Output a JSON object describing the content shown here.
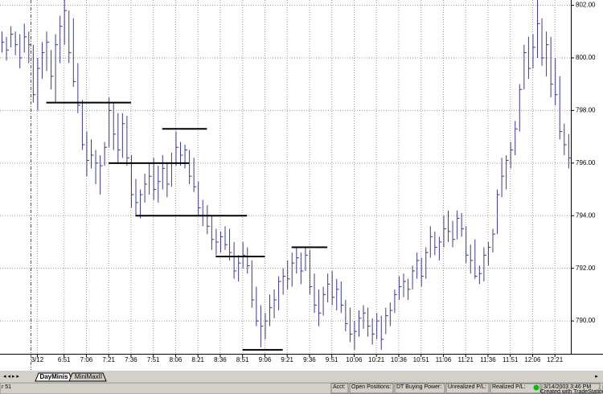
{
  "chart_data": {
    "type": "hlc",
    "color": "#3c3c8e",
    "level_color": "#000000",
    "grid": true,
    "ylim": [
      788.75,
      802.2
    ],
    "yticks": [
      {
        "value": 790,
        "label": "790.00"
      },
      {
        "value": 792,
        "label": "792.00"
      },
      {
        "value": 794,
        "label": "794.00"
      },
      {
        "value": 796,
        "label": "796.00"
      },
      {
        "value": 798,
        "label": "798.00"
      },
      {
        "value": 800,
        "label": "800.00"
      },
      {
        "value": 802,
        "label": "802.00"
      }
    ],
    "categories": [
      null,
      null,
      null,
      null,
      null,
      null,
      null,
      null,
      "3/12",
      null,
      null,
      null,
      null,
      null,
      "6:51",
      null,
      null,
      null,
      null,
      "7:06",
      null,
      null,
      null,
      null,
      "7:21",
      null,
      null,
      null,
      null,
      "7:36",
      null,
      null,
      null,
      null,
      "7:51",
      null,
      null,
      null,
      null,
      "8:06",
      null,
      null,
      null,
      null,
      "8:21",
      null,
      null,
      null,
      null,
      "8:36",
      null,
      null,
      null,
      null,
      "8:51",
      null,
      null,
      null,
      null,
      "9:06",
      null,
      null,
      null,
      null,
      "9:21",
      null,
      null,
      null,
      null,
      "9:36",
      null,
      null,
      null,
      null,
      "9:51",
      null,
      null,
      null,
      null,
      "10:06",
      null,
      null,
      null,
      null,
      "10:21",
      null,
      null,
      null,
      null,
      "10:36",
      null,
      null,
      null,
      null,
      "10:51",
      null,
      null,
      null,
      null,
      "11:06",
      null,
      null,
      null,
      null,
      "11:21",
      null,
      null,
      null,
      null,
      "11:36",
      null,
      null,
      null,
      null,
      "11:51",
      null,
      null,
      null,
      null,
      "12:06",
      null,
      null,
      null,
      null,
      "12:21",
      null,
      null,
      null
    ],
    "high": [
      801.0,
      800.8,
      801.2,
      801.0,
      800.9,
      801.3,
      801.0,
      800.5,
      800.0,
      800.6,
      801.0,
      800.3,
      800.9,
      801.6,
      802.2,
      801.8,
      801.5,
      799.8,
      798.4,
      797.2,
      796.9,
      796.5,
      796.3,
      796.8,
      798.5,
      798.3,
      797.9,
      797.9,
      797.8,
      796.3,
      795.4,
      795.0,
      795.6,
      796.0,
      796.2,
      795.9,
      796.3,
      796.0,
      796.4,
      797.2,
      796.8,
      796.7,
      796.5,
      796.2,
      795.3,
      794.6,
      794.4,
      794.0,
      793.5,
      793.4,
      793.6,
      793.5,
      793.0,
      792.5,
      793.0,
      792.8,
      792.3,
      791.3,
      790.6,
      790.3,
      791.0,
      791.2,
      791.7,
      792.0,
      792.3,
      792.6,
      792.8,
      792.6,
      792.8,
      792.7,
      791.8,
      791.2,
      791.3,
      791.8,
      791.9,
      791.6,
      791.5,
      790.8,
      790.5,
      790.0,
      790.4,
      790.6,
      790.5,
      790.1,
      790.3,
      790.2,
      790.5,
      790.7,
      791.2,
      791.7,
      791.8,
      791.6,
      792.1,
      792.6,
      792.4,
      792.8,
      793.6,
      793.4,
      793.2,
      794.0,
      794.2,
      793.8,
      794.2,
      794.1,
      793.6,
      792.9,
      793.1,
      792.1,
      792.8,
      793.0,
      793.5,
      795.0,
      796.2,
      796.3,
      796.8,
      797.6,
      799.0,
      800.5,
      800.8,
      800.9,
      802.2,
      801.5,
      801.0,
      800.8,
      800.0,
      799.3,
      797.5,
      797.1
    ],
    "low": [
      800.2,
      799.9,
      800.4,
      800.1,
      799.6,
      800.2,
      799.8,
      798.3,
      798.0,
      799.2,
      799.5,
      798.8,
      798.3,
      799.8,
      800.5,
      799.8,
      798.9,
      797.9,
      796.5,
      795.5,
      795.8,
      795.2,
      794.8,
      795.9,
      796.6,
      796.5,
      796.0,
      796.2,
      795.9,
      794.3,
      794.0,
      793.9,
      794.5,
      794.8,
      794.6,
      794.5,
      795.0,
      794.7,
      795.1,
      795.9,
      795.9,
      795.8,
      795.2,
      794.9,
      794.0,
      793.6,
      793.3,
      792.7,
      792.5,
      792.6,
      792.7,
      792.3,
      791.6,
      791.5,
      792.0,
      791.8,
      790.5,
      789.8,
      789.0,
      789.3,
      789.8,
      790.1,
      790.4,
      791.0,
      791.2,
      791.3,
      791.8,
      791.4,
      791.9,
      791.0,
      790.3,
      789.8,
      790.2,
      790.7,
      790.6,
      790.4,
      790.3,
      789.6,
      789.2,
      788.9,
      789.4,
      789.7,
      789.4,
      789.1,
      789.3,
      788.9,
      789.5,
      789.8,
      790.3,
      790.8,
      790.9,
      790.8,
      791.2,
      791.6,
      791.3,
      791.6,
      792.4,
      792.5,
      792.3,
      792.8,
      793.0,
      792.8,
      793.1,
      793.2,
      792.2,
      791.8,
      791.6,
      791.4,
      791.5,
      792.1,
      792.6,
      793.3,
      794.7,
      795.0,
      795.8,
      796.3,
      797.2,
      798.8,
      799.2,
      799.6,
      800.0,
      799.7,
      799.3,
      798.5,
      798.2,
      796.9,
      796.3,
      795.8
    ],
    "close": [
      800.6,
      800.3,
      800.9,
      800.5,
      800.0,
      800.8,
      800.5,
      798.6,
      799.6,
      800.2,
      800.6,
      799.3,
      800.5,
      801.2,
      801.8,
      800.2,
      799.1,
      798.2,
      796.7,
      796.1,
      796.3,
      796.0,
      795.9,
      796.6,
      798.0,
      797.1,
      796.5,
      797.5,
      796.2,
      794.8,
      794.5,
      794.8,
      795.2,
      795.5,
      795.0,
      795.3,
      795.8,
      795.2,
      796.0,
      796.6,
      796.3,
      796.5,
      795.5,
      795.1,
      794.3,
      794.0,
      793.6,
      793.1,
      793.0,
      793.2,
      792.9,
      792.6,
      791.9,
      792.2,
      792.5,
      792.1,
      790.8,
      790.0,
      789.8,
      790.0,
      790.5,
      790.8,
      791.5,
      791.7,
      791.6,
      792.2,
      792.4,
      791.9,
      792.5,
      791.3,
      790.6,
      790.3,
      791.0,
      791.4,
      790.9,
      791.2,
      790.6,
      789.9,
      789.5,
      789.6,
      790.1,
      790.3,
      789.8,
      789.5,
      790.0,
      789.3,
      790.2,
      790.4,
      791.0,
      791.3,
      791.5,
      791.2,
      791.9,
      792.3,
      791.7,
      792.6,
      793.2,
      792.8,
      793.0,
      793.5,
      793.4,
      793.1,
      793.9,
      793.5,
      792.5,
      792.3,
      791.7,
      791.8,
      792.5,
      792.8,
      793.3,
      794.8,
      795.5,
      796.1,
      796.5,
      797.3,
      798.8,
      800.2,
      799.6,
      800.4,
      801.3,
      800.0,
      800.5,
      799.0,
      798.6,
      797.2,
      796.7,
      796.2
    ],
    "levels": [
      {
        "value": 798.3,
        "start": 10,
        "end": 29
      },
      {
        "value": 797.3,
        "start": 36,
        "end": 46
      },
      {
        "value": 796.0,
        "start": 24,
        "end": 42
      },
      {
        "value": 794.0,
        "start": 30,
        "end": 55
      },
      {
        "value": 792.45,
        "start": 48,
        "end": 59
      },
      {
        "value": 792.8,
        "start": 65,
        "end": 73
      },
      {
        "value": 788.9,
        "start": 54,
        "end": 63
      }
    ]
  },
  "ui": {
    "tabs": [
      "DayMinis",
      "MiniMaxII"
    ],
    "status": [
      "r 51",
      "Acct:",
      "Open Positions:",
      "DT Buying Power:",
      "Unrealized P/L:",
      "Realized P/L:",
      "3/14/2003 3:46 PM"
    ],
    "credit": "Created with TradeStation"
  }
}
